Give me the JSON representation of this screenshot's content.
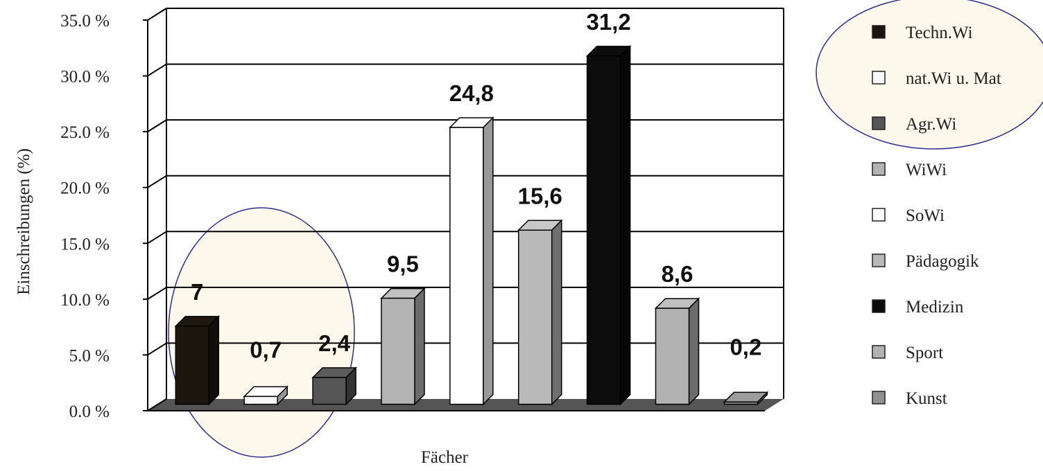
{
  "chart_data": {
    "type": "bar",
    "ylabel": "Einschreibungen (%)",
    "xlabel": "Fächer",
    "ylim": [
      0,
      35
    ],
    "y_ticks": [
      "0.0 %",
      "5.0 %",
      "10.0 %",
      "15.0 %",
      "20.0 %",
      "25.0 %",
      "30.0 %",
      "35.0 %"
    ],
    "grid": true,
    "legend_position": "right",
    "categories": [
      "Techn.Wi",
      "nat.Wi u. Mat",
      "Agr.Wi",
      "WiWi",
      "SoWi",
      "Pädagogik",
      "Medizin",
      "Sport",
      "Kunst"
    ],
    "values": [
      7,
      0.7,
      2.4,
      9.5,
      24.8,
      15.6,
      31.2,
      8.6,
      0.2
    ],
    "value_labels": [
      "7",
      "0,7",
      "2,4",
      "9,5",
      "24,8",
      "15,6",
      "31,2",
      "8,6",
      "0,2"
    ],
    "colors": [
      "#1c160e",
      "#f8f8f8",
      "#555555",
      "#b4b4b4",
      "#ffffff",
      "#b9b9b9",
      "#0c0c0c",
      "#b2b2b2",
      "#909090"
    ],
    "highlight_fill": "#fcf8ec",
    "highlight_stroke": "#2e2e8c"
  }
}
